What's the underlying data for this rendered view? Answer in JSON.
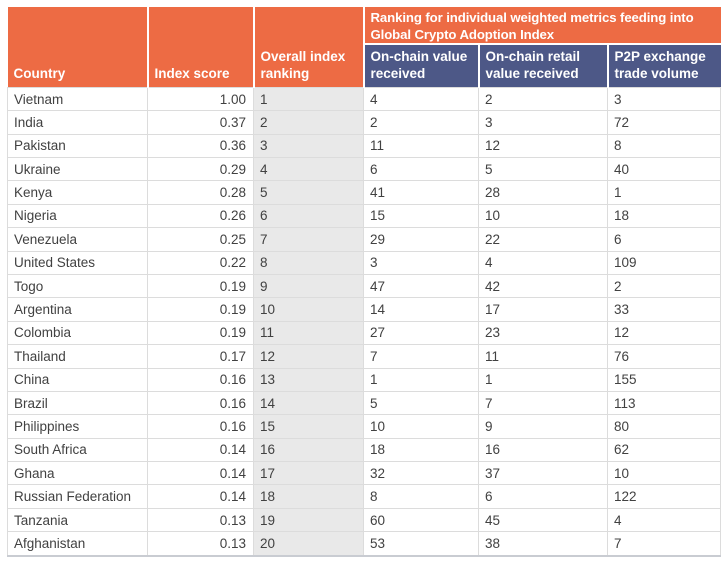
{
  "colors": {
    "header_orange": "#ED6B44",
    "subheader_navy": "#4D5887",
    "rank_column_bg": "#E9E9E9",
    "grid_line": "#DCDCDC",
    "body_text": "#414141",
    "header_text": "#FFFFFF"
  },
  "chart_data": {
    "type": "table",
    "span_header": "Ranking for individual weighted metrics feeding into Global Crypto Adoption Index",
    "columns": [
      "Country",
      "Index score",
      "Overall index ranking",
      "On-chain value received",
      "On-chain retail value received",
      "P2P exchange trade volume"
    ],
    "rows": [
      {
        "country": "Vietnam",
        "index_score": "1.00",
        "overall_rank": "1",
        "on_chain_value_received": "4",
        "on_chain_retail_value_received": "2",
        "p2p_exchange_trade_volume": "3"
      },
      {
        "country": "India",
        "index_score": "0.37",
        "overall_rank": "2",
        "on_chain_value_received": "2",
        "on_chain_retail_value_received": "3",
        "p2p_exchange_trade_volume": "72"
      },
      {
        "country": "Pakistan",
        "index_score": "0.36",
        "overall_rank": "3",
        "on_chain_value_received": "11",
        "on_chain_retail_value_received": "12",
        "p2p_exchange_trade_volume": "8"
      },
      {
        "country": "Ukraine",
        "index_score": "0.29",
        "overall_rank": "4",
        "on_chain_value_received": "6",
        "on_chain_retail_value_received": "5",
        "p2p_exchange_trade_volume": "40"
      },
      {
        "country": "Kenya",
        "index_score": "0.28",
        "overall_rank": "5",
        "on_chain_value_received": "41",
        "on_chain_retail_value_received": "28",
        "p2p_exchange_trade_volume": "1"
      },
      {
        "country": "Nigeria",
        "index_score": "0.26",
        "overall_rank": "6",
        "on_chain_value_received": "15",
        "on_chain_retail_value_received": "10",
        "p2p_exchange_trade_volume": "18"
      },
      {
        "country": "Venezuela",
        "index_score": "0.25",
        "overall_rank": "7",
        "on_chain_value_received": "29",
        "on_chain_retail_value_received": "22",
        "p2p_exchange_trade_volume": "6"
      },
      {
        "country": "United States",
        "index_score": "0.22",
        "overall_rank": "8",
        "on_chain_value_received": "3",
        "on_chain_retail_value_received": "4",
        "p2p_exchange_trade_volume": "109"
      },
      {
        "country": "Togo",
        "index_score": "0.19",
        "overall_rank": "9",
        "on_chain_value_received": "47",
        "on_chain_retail_value_received": "42",
        "p2p_exchange_trade_volume": "2"
      },
      {
        "country": "Argentina",
        "index_score": "0.19",
        "overall_rank": "10",
        "on_chain_value_received": "14",
        "on_chain_retail_value_received": "17",
        "p2p_exchange_trade_volume": "33"
      },
      {
        "country": "Colombia",
        "index_score": "0.19",
        "overall_rank": "11",
        "on_chain_value_received": "27",
        "on_chain_retail_value_received": "23",
        "p2p_exchange_trade_volume": "12"
      },
      {
        "country": "Thailand",
        "index_score": "0.17",
        "overall_rank": "12",
        "on_chain_value_received": "7",
        "on_chain_retail_value_received": "11",
        "p2p_exchange_trade_volume": "76"
      },
      {
        "country": "China",
        "index_score": "0.16",
        "overall_rank": "13",
        "on_chain_value_received": "1",
        "on_chain_retail_value_received": "1",
        "p2p_exchange_trade_volume": "155"
      },
      {
        "country": "Brazil",
        "index_score": "0.16",
        "overall_rank": "14",
        "on_chain_value_received": "5",
        "on_chain_retail_value_received": "7",
        "p2p_exchange_trade_volume": "113"
      },
      {
        "country": "Philippines",
        "index_score": "0.16",
        "overall_rank": "15",
        "on_chain_value_received": "10",
        "on_chain_retail_value_received": "9",
        "p2p_exchange_trade_volume": "80"
      },
      {
        "country": "South Africa",
        "index_score": "0.14",
        "overall_rank": "16",
        "on_chain_value_received": "18",
        "on_chain_retail_value_received": "16",
        "p2p_exchange_trade_volume": "62"
      },
      {
        "country": "Ghana",
        "index_score": "0.14",
        "overall_rank": "17",
        "on_chain_value_received": "32",
        "on_chain_retail_value_received": "37",
        "p2p_exchange_trade_volume": "10"
      },
      {
        "country": "Russian Federation",
        "index_score": "0.14",
        "overall_rank": "18",
        "on_chain_value_received": "8",
        "on_chain_retail_value_received": "6",
        "p2p_exchange_trade_volume": "122"
      },
      {
        "country": "Tanzania",
        "index_score": "0.13",
        "overall_rank": "19",
        "on_chain_value_received": "60",
        "on_chain_retail_value_received": "45",
        "p2p_exchange_trade_volume": "4"
      },
      {
        "country": "Afghanistan",
        "index_score": "0.13",
        "overall_rank": "20",
        "on_chain_value_received": "53",
        "on_chain_retail_value_received": "38",
        "p2p_exchange_trade_volume": "7"
      }
    ]
  }
}
